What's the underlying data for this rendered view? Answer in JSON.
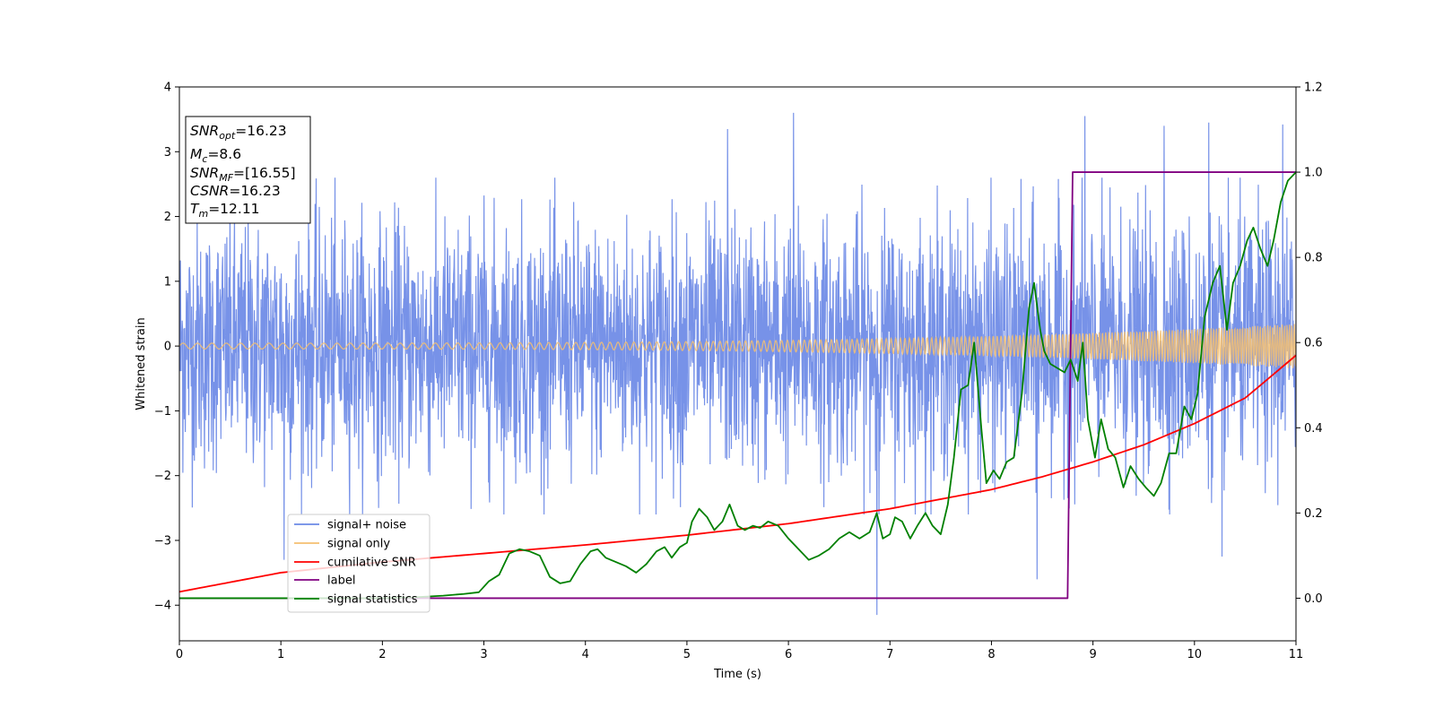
{
  "chart_data": {
    "type": "line",
    "title": "",
    "xlabel": "Time (s)",
    "ylabel": "Whitened strain",
    "xlim": [
      0,
      11
    ],
    "ylim_left": [
      -4.55,
      4.0
    ],
    "ylim_right": [
      -0.1,
      1.2
    ],
    "x_ticks": [
      0,
      1,
      2,
      3,
      4,
      5,
      6,
      7,
      8,
      9,
      10,
      11
    ],
    "y_ticks_left": [
      -4,
      -3,
      -2,
      -1,
      0,
      1,
      2,
      3,
      4
    ],
    "y_ticks_right": [
      0.0,
      0.2,
      0.4,
      0.6,
      0.8,
      1.0,
      1.2
    ],
    "x_tick_labels": [
      "0",
      "1",
      "2",
      "3",
      "4",
      "5",
      "6",
      "7",
      "8",
      "9",
      "10",
      "11"
    ],
    "y_tick_labels_left": [
      "−4",
      "−3",
      "−2",
      "−1",
      "0",
      "1",
      "2",
      "3",
      "4"
    ],
    "y_tick_labels_right": [
      "0.0",
      "0.2",
      "0.4",
      "0.6",
      "0.8",
      "1.0",
      "1.2"
    ],
    "grid": false,
    "legend_position": "lower-left",
    "series": [
      {
        "name": "signal+ noise",
        "axis": "left",
        "color": "#6b89e6",
        "description_values": "noisy whitened strain, approx within [-2, 2] with spikes to ±3.6, one dip to -4.15 near t=6.87",
        "peaks": [
          [
            6.05,
            3.6
          ],
          [
            5.4,
            3.35
          ],
          [
            8.92,
            3.55
          ],
          [
            10.87,
            3.42
          ],
          [
            10.14,
            3.45
          ],
          [
            9.7,
            3.4
          ],
          [
            6.87,
            -4.15
          ],
          [
            8.45,
            -3.6
          ],
          [
            1.03,
            -3.3
          ],
          [
            10.27,
            -3.25
          ]
        ]
      },
      {
        "name": "signal only",
        "axis": "left",
        "color": "#f5bf70",
        "description_values": "chirp oscillation, amplitude growing from ~0.05 at t=0 to ~0.35 at t=11"
      },
      {
        "name": "cumilative SNR",
        "axis": "right",
        "color": "#ff0000",
        "x": [
          0,
          1,
          2,
          3,
          4,
          5,
          6,
          7,
          8,
          8.5,
          9,
          9.5,
          10,
          10.5,
          11
        ],
        "values": [
          0.015,
          0.06,
          0.085,
          0.105,
          0.125,
          0.148,
          0.175,
          0.21,
          0.255,
          0.285,
          0.32,
          0.36,
          0.41,
          0.47,
          0.57
        ]
      },
      {
        "name": "label",
        "axis": "right",
        "color": "#800080",
        "x": [
          0,
          8.75,
          8.8,
          11
        ],
        "values": [
          0.0,
          0.0,
          1.0,
          1.0
        ]
      },
      {
        "name": "signal statistics",
        "axis": "right",
        "color": "#008000",
        "x": [
          0,
          0.5,
          1,
          1.5,
          2,
          2.3,
          2.6,
          2.8,
          2.95,
          3.05,
          3.15,
          3.25,
          3.35,
          3.45,
          3.55,
          3.65,
          3.75,
          3.85,
          3.95,
          4.05,
          4.12,
          4.2,
          4.3,
          4.4,
          4.5,
          4.6,
          4.7,
          4.78,
          4.85,
          4.93,
          5.0,
          5.05,
          5.12,
          5.2,
          5.27,
          5.35,
          5.42,
          5.5,
          5.57,
          5.65,
          5.72,
          5.8,
          5.9,
          6.0,
          6.1,
          6.2,
          6.3,
          6.4,
          6.5,
          6.6,
          6.7,
          6.8,
          6.87,
          6.93,
          7.0,
          7.05,
          7.12,
          7.2,
          7.27,
          7.35,
          7.42,
          7.5,
          7.57,
          7.63,
          7.7,
          7.77,
          7.83,
          7.9,
          7.95,
          8.02,
          8.08,
          8.15,
          8.22,
          8.3,
          8.37,
          8.42,
          8.48,
          8.52,
          8.58,
          8.65,
          8.72,
          8.78,
          8.85,
          8.9,
          8.95,
          9.02,
          9.08,
          9.15,
          9.22,
          9.3,
          9.37,
          9.45,
          9.52,
          9.6,
          9.67,
          9.75,
          9.82,
          9.9,
          9.97,
          10.03,
          10.1,
          10.18,
          10.25,
          10.32,
          10.38,
          10.45,
          10.52,
          10.58,
          10.65,
          10.72,
          10.78,
          10.85,
          10.92,
          11.0
        ],
        "values": [
          0.0,
          0.0,
          0.0,
          0.0,
          0.0,
          0.002,
          0.006,
          0.01,
          0.014,
          0.04,
          0.055,
          0.105,
          0.115,
          0.11,
          0.1,
          0.05,
          0.035,
          0.04,
          0.08,
          0.11,
          0.115,
          0.095,
          0.085,
          0.075,
          0.06,
          0.08,
          0.11,
          0.12,
          0.095,
          0.12,
          0.13,
          0.18,
          0.21,
          0.19,
          0.16,
          0.18,
          0.22,
          0.17,
          0.16,
          0.17,
          0.165,
          0.18,
          0.17,
          0.14,
          0.115,
          0.09,
          0.1,
          0.115,
          0.14,
          0.155,
          0.14,
          0.155,
          0.2,
          0.14,
          0.15,
          0.19,
          0.18,
          0.14,
          0.17,
          0.2,
          0.17,
          0.15,
          0.22,
          0.33,
          0.49,
          0.5,
          0.6,
          0.4,
          0.27,
          0.3,
          0.28,
          0.32,
          0.33,
          0.48,
          0.68,
          0.74,
          0.63,
          0.58,
          0.55,
          0.54,
          0.53,
          0.56,
          0.51,
          0.6,
          0.42,
          0.33,
          0.42,
          0.35,
          0.33,
          0.26,
          0.31,
          0.28,
          0.26,
          0.24,
          0.27,
          0.34,
          0.34,
          0.45,
          0.42,
          0.48,
          0.66,
          0.74,
          0.78,
          0.63,
          0.74,
          0.78,
          0.84,
          0.87,
          0.82,
          0.78,
          0.84,
          0.93,
          0.98,
          1.0
        ]
      }
    ],
    "info_box": {
      "lines": [
        {
          "main": "SNR",
          "sub": "opt",
          "value": "=16.23"
        },
        {
          "main": "M",
          "sub": "c",
          "value": "=8.6"
        },
        {
          "main": "SNR",
          "sub": "MF",
          "value": "=[16.55]"
        },
        {
          "main": "CSNR",
          "sub": "",
          "value": "=16.23"
        },
        {
          "main": "T",
          "sub": "m",
          "value": "=12.11"
        }
      ]
    }
  }
}
